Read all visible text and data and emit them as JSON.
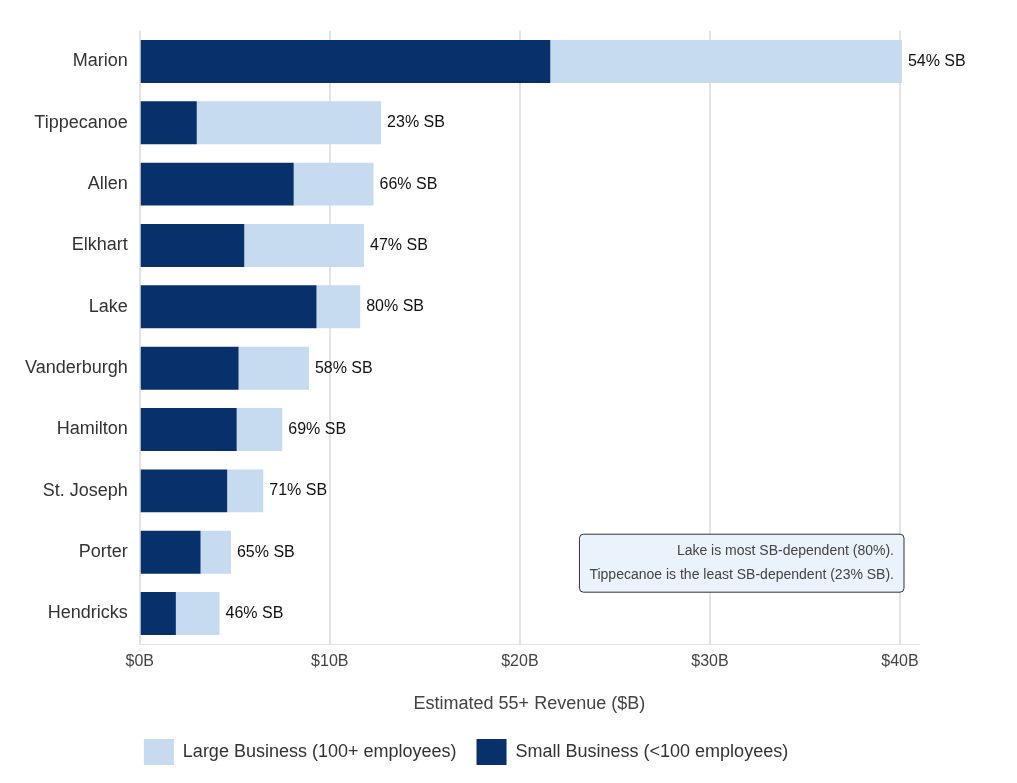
{
  "chart_data": {
    "type": "bar",
    "orientation": "horizontal",
    "stacked": true,
    "categories": [
      "Marion",
      "Tippecanoe",
      "Allen",
      "Elkhart",
      "Lake",
      "Vanderburgh",
      "Hamilton",
      "St. Joseph",
      "Porter",
      "Hendricks"
    ],
    "series": [
      {
        "name": "Small Business (<100 employees)",
        "color": "#08306b",
        "values": [
          21.6,
          3.0,
          8.1,
          5.5,
          9.3,
          5.2,
          5.1,
          4.6,
          3.2,
          1.9
        ]
      },
      {
        "name": "Large Business (100+ employees)",
        "color": "#c6dbef",
        "values": [
          18.5,
          9.7,
          4.2,
          6.3,
          2.3,
          3.7,
          2.4,
          1.9,
          1.6,
          2.3
        ]
      }
    ],
    "xlim": [
      0,
      41
    ],
    "xticks": [
      {
        "value": 0,
        "label": "$0B"
      },
      {
        "value": 10,
        "label": "$10B"
      },
      {
        "value": 20,
        "label": "$20B"
      },
      {
        "value": 30,
        "label": "$30B"
      },
      {
        "value": 40,
        "label": "$40B"
      }
    ],
    "xlabel": "Estimated 55+ Revenue ($B)",
    "grid": "x",
    "legend": "bottom",
    "annotations": [
      {
        "text": "54% SB",
        "x": 40.1,
        "y": "Marion"
      },
      {
        "text": "23% SB",
        "x": 12.7,
        "y": "Tippecanoe"
      },
      {
        "text": "66% SB",
        "x": 12.3,
        "y": "Allen"
      },
      {
        "text": "47% SB",
        "x": 11.8,
        "y": "Elkhart"
      },
      {
        "text": "80% SB",
        "x": 11.6,
        "y": "Lake"
      },
      {
        "text": "58% SB",
        "x": 8.9,
        "y": "Vanderburgh"
      },
      {
        "text": "69% SB",
        "x": 7.5,
        "y": "Hamilton"
      },
      {
        "text": "71% SB",
        "x": 6.5,
        "y": "St. Joseph"
      },
      {
        "text": "65% SB",
        "x": 4.8,
        "y": "Porter"
      },
      {
        "text": "46% SB",
        "x": 4.2,
        "y": "Hendricks"
      },
      "Lake is most SB-dependent (80%).",
      "Tippecanoe is the least SB-dependent (23% SB)."
    ]
  }
}
